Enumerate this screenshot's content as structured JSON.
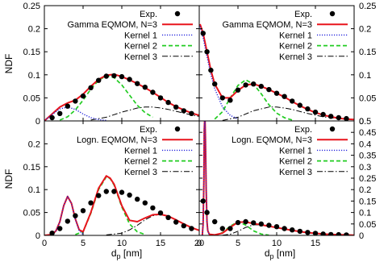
{
  "figure": {
    "ylabel": "NDF",
    "xlabel_main": "d",
    "xlabel_sub": "p",
    "xlabel_unit": " [nm]"
  },
  "chart_data": [
    {
      "type": "line",
      "panel": "top-left",
      "xlim": [
        0,
        20
      ],
      "ylim": [
        0,
        0.25
      ],
      "xticks": [
        0,
        5,
        10,
        15,
        20
      ],
      "yticks": [
        0,
        0.05,
        0.1,
        0.15,
        0.2,
        0.25
      ],
      "ytick_labels": [
        "0",
        "0.05",
        "0.1",
        "0.15",
        "0.2",
        "0.25"
      ],
      "show_xtick_labels": false,
      "ytick_side": "left",
      "legend": {
        "position": "top-right",
        "labels": [
          "Exp.",
          "Gamma EQMOM, N=3",
          "Kernel 1",
          "Kernel 2",
          "Kernel 3"
        ]
      },
      "scatter": {
        "name": "Exp.",
        "x": [
          1,
          2,
          3,
          4,
          5,
          6,
          7,
          8,
          9,
          10,
          11,
          12,
          13,
          14,
          15,
          16,
          17,
          18,
          19
        ],
        "y": [
          0.007,
          0.016,
          0.032,
          0.043,
          0.054,
          0.072,
          0.088,
          0.097,
          0.098,
          0.096,
          0.09,
          0.081,
          0.073,
          0.062,
          0.05,
          0.04,
          0.03,
          0.022,
          0.016
        ]
      },
      "series": [
        {
          "name": "Gamma EQMOM, N=3",
          "kind": "total",
          "x": [
            0,
            1,
            2,
            3,
            4,
            5,
            6,
            7,
            8,
            9,
            10,
            11,
            12,
            13,
            14,
            15,
            16,
            17,
            18,
            19,
            20
          ],
          "y": [
            0,
            0.015,
            0.03,
            0.039,
            0.045,
            0.058,
            0.075,
            0.09,
            0.099,
            0.101,
            0.096,
            0.089,
            0.081,
            0.072,
            0.062,
            0.051,
            0.04,
            0.031,
            0.024,
            0.017,
            0.012
          ]
        },
        {
          "name": "Kernel 1",
          "kind": "k1",
          "x": [
            0,
            1,
            2,
            3,
            4,
            5,
            6,
            7,
            8
          ],
          "y": [
            0,
            0.014,
            0.026,
            0.03,
            0.025,
            0.015,
            0.007,
            0.003,
            0.001
          ]
        },
        {
          "name": "Kernel 2",
          "kind": "k2",
          "x": [
            2,
            3,
            4,
            5,
            6,
            7,
            8,
            9,
            10,
            11,
            12,
            13,
            14
          ],
          "y": [
            0.002,
            0.009,
            0.024,
            0.045,
            0.069,
            0.088,
            0.098,
            0.094,
            0.078,
            0.056,
            0.034,
            0.018,
            0.008
          ]
        },
        {
          "name": "Kernel 3",
          "kind": "k3",
          "x": [
            6,
            8,
            10,
            12,
            13,
            14,
            15,
            16,
            17,
            18,
            19,
            20
          ],
          "y": [
            0.002,
            0.008,
            0.019,
            0.028,
            0.03,
            0.03,
            0.028,
            0.025,
            0.021,
            0.017,
            0.013,
            0.01
          ]
        }
      ]
    },
    {
      "type": "line",
      "panel": "top-right",
      "xlim": [
        0,
        20
      ],
      "ylim": [
        0,
        0.25
      ],
      "xticks": [
        0,
        5,
        10,
        15,
        20
      ],
      "yticks": [
        0,
        0.05,
        0.1,
        0.15,
        0.2,
        0.25
      ],
      "ytick_labels": [
        "0",
        "0.05",
        "0.1",
        "0.15",
        "0.2",
        "0.25"
      ],
      "show_xtick_labels": false,
      "ytick_side": "right",
      "legend": {
        "position": "top-right",
        "labels": [
          "Exp.",
          "Gamma EQMOM, N=3",
          "Kernel 1",
          "Kernel 2",
          "Kernel 3"
        ]
      },
      "scatter": {
        "name": "Exp.",
        "x": [
          0.5,
          1,
          1.5,
          2,
          3,
          4,
          5,
          6,
          7,
          8,
          9,
          10,
          11,
          12,
          13,
          14,
          15,
          16,
          17,
          18,
          19
        ],
        "y": [
          0.19,
          0.15,
          0.11,
          0.08,
          0.05,
          0.045,
          0.067,
          0.078,
          0.08,
          0.075,
          0.068,
          0.06,
          0.053,
          0.043,
          0.034,
          0.026,
          0.019,
          0.014,
          0.01,
          0.007,
          0.005
        ]
      },
      "series": [
        {
          "name": "Gamma EQMOM, N=3",
          "kind": "total",
          "x": [
            0.1,
            0.5,
            1,
            1.5,
            2,
            3,
            4,
            5,
            6,
            7,
            8,
            9,
            10,
            11,
            12,
            13,
            14,
            15,
            16,
            17,
            18,
            19,
            20
          ],
          "y": [
            0.21,
            0.19,
            0.15,
            0.11,
            0.08,
            0.05,
            0.05,
            0.066,
            0.078,
            0.08,
            0.075,
            0.068,
            0.06,
            0.052,
            0.042,
            0.033,
            0.025,
            0.018,
            0.013,
            0.009,
            0.006,
            0.004,
            0.003
          ]
        },
        {
          "name": "Kernel 1",
          "kind": "k1",
          "x": [
            0.1,
            0.5,
            1,
            1.5,
            2,
            3,
            4,
            5
          ],
          "y": [
            0.205,
            0.18,
            0.14,
            0.1,
            0.07,
            0.03,
            0.012,
            0.004
          ]
        },
        {
          "name": "Kernel 2",
          "kind": "k2",
          "x": [
            2,
            3,
            4,
            5,
            6,
            7,
            8,
            9,
            10,
            11,
            12
          ],
          "y": [
            0.004,
            0.02,
            0.05,
            0.077,
            0.089,
            0.08,
            0.059,
            0.035,
            0.017,
            0.007,
            0.002
          ]
        },
        {
          "name": "Kernel 3",
          "kind": "k3",
          "x": [
            3,
            5,
            7,
            9,
            10,
            11,
            12,
            14,
            16,
            18,
            20
          ],
          "y": [
            0.001,
            0.008,
            0.022,
            0.03,
            0.03,
            0.028,
            0.025,
            0.016,
            0.009,
            0.005,
            0.003
          ]
        }
      ]
    },
    {
      "type": "line",
      "panel": "bottom-left",
      "xlim": [
        0,
        20
      ],
      "ylim": [
        0,
        0.25
      ],
      "xticks": [
        0,
        5,
        10,
        15,
        20
      ],
      "yticks": [
        0,
        0.05,
        0.1,
        0.15,
        0.2,
        0.25
      ],
      "xtick_labels": [
        "0",
        "5",
        "10",
        "15",
        "20"
      ],
      "ytick_labels": [
        "0",
        "0.05",
        "0.1",
        "0.15",
        "0.2",
        ""
      ],
      "show_xtick_labels": true,
      "ytick_side": "left",
      "legend": {
        "position": "top-right",
        "labels": [
          "Exp.",
          "Logn. EQMOM, N=3",
          "Kernel 1",
          "Kernel 2",
          "Kernel 3"
        ]
      },
      "scatter": {
        "name": "Exp.",
        "x": [
          1,
          2,
          3,
          4,
          5,
          6,
          7,
          8,
          9,
          10,
          11,
          12,
          13,
          14,
          15,
          16,
          17,
          18,
          19
        ],
        "y": [
          0.005,
          0.015,
          0.031,
          0.043,
          0.054,
          0.071,
          0.087,
          0.096,
          0.096,
          0.094,
          0.088,
          0.079,
          0.071,
          0.06,
          0.049,
          0.039,
          0.029,
          0.021,
          0.015
        ]
      },
      "series": [
        {
          "name": "Logn. EQMOM, N=3",
          "kind": "total",
          "x": [
            0,
            1,
            1.5,
            2,
            2.5,
            3,
            3.5,
            4,
            4.5,
            5,
            6,
            7,
            8,
            8.5,
            9,
            10,
            11,
            12,
            13,
            14,
            15,
            16,
            17,
            18,
            19,
            20
          ],
          "y": [
            0,
            0.002,
            0.01,
            0.03,
            0.065,
            0.085,
            0.07,
            0.036,
            0.012,
            0.008,
            0.05,
            0.103,
            0.13,
            0.125,
            0.112,
            0.065,
            0.033,
            0.03,
            0.038,
            0.045,
            0.046,
            0.042,
            0.034,
            0.025,
            0.017,
            0.011
          ]
        },
        {
          "name": "Kernel 1",
          "kind": "k1",
          "x": [
            1,
            1.5,
            2,
            2.5,
            3,
            3.5,
            4,
            4.5,
            5
          ],
          "y": [
            0.001,
            0.01,
            0.03,
            0.065,
            0.085,
            0.07,
            0.035,
            0.01,
            0.002
          ]
        },
        {
          "name": "Kernel 2",
          "kind": "k2",
          "x": [
            4,
            5,
            6,
            7,
            8,
            8.5,
            9,
            10,
            11,
            12,
            13
          ],
          "y": [
            0.002,
            0.008,
            0.048,
            0.1,
            0.128,
            0.124,
            0.11,
            0.062,
            0.025,
            0.008,
            0.002
          ]
        },
        {
          "name": "Kernel 3",
          "kind": "k3",
          "x": [
            8,
            10,
            11,
            12,
            13,
            14,
            15,
            16,
            17,
            18,
            19,
            20
          ],
          "y": [
            0.001,
            0.005,
            0.012,
            0.022,
            0.034,
            0.043,
            0.046,
            0.042,
            0.034,
            0.025,
            0.017,
            0.011
          ]
        }
      ]
    },
    {
      "type": "line",
      "panel": "bottom-right",
      "xlim": [
        0,
        20
      ],
      "ylim": [
        0,
        0.5
      ],
      "xticks": [
        0,
        5,
        10,
        15,
        20
      ],
      "yticks": [
        0,
        0.05,
        0.1,
        0.15,
        0.2,
        0.25,
        0.3,
        0.35,
        0.4,
        0.45,
        0.5
      ],
      "xtick_labels": [
        "0",
        "5",
        "10",
        "15",
        ""
      ],
      "ytick_labels": [
        "0",
        "0.05",
        "0.1",
        "0.15",
        "0.2",
        "0.25",
        "0.3",
        "0.35",
        "0.4",
        "0.45",
        "0.5"
      ],
      "show_xtick_labels": true,
      "ytick_side": "right",
      "legend": {
        "position": "top-right",
        "labels": [
          "Exp.",
          "Logn. EQMOM, N=3",
          "Kernel 1",
          "Kernel 2",
          "Kernel 3"
        ]
      },
      "scatter": {
        "name": "Exp.",
        "x": [
          0.5,
          1,
          2,
          3,
          4,
          5,
          6,
          7,
          8,
          9,
          10,
          11,
          12,
          13,
          14,
          15,
          16,
          17,
          18,
          19
        ],
        "y": [
          0.15,
          0.1,
          0.06,
          0.03,
          0.03,
          0.056,
          0.06,
          0.055,
          0.05,
          0.044,
          0.038,
          0.03,
          0.024,
          0.018,
          0.013,
          0.009,
          0.006,
          0.004,
          0.003,
          0.002
        ]
      },
      "series": [
        {
          "name": "Logn. EQMOM, N=3",
          "kind": "total",
          "x": [
            0.4,
            0.5,
            0.6,
            0.65,
            0.7,
            0.75,
            0.8,
            0.9,
            1.0,
            1.1,
            1.3,
            2,
            3,
            4,
            5,
            6,
            7,
            8,
            9,
            10,
            11,
            12,
            13,
            14,
            15,
            16,
            17,
            18,
            19,
            20
          ],
          "y": [
            0,
            0.05,
            0.25,
            0.46,
            0.5,
            0.5,
            0.42,
            0.2,
            0.06,
            0.02,
            0.005,
            0.002,
            0.01,
            0.035,
            0.058,
            0.058,
            0.052,
            0.046,
            0.04,
            0.034,
            0.028,
            0.022,
            0.017,
            0.012,
            0.009,
            0.006,
            0.004,
            0.003,
            0.002,
            0.001
          ]
        },
        {
          "name": "Kernel 1",
          "kind": "k1",
          "x": [
            0.4,
            0.5,
            0.6,
            0.65,
            0.7,
            0.75,
            0.8,
            0.9,
            1.0,
            1.1,
            1.3
          ],
          "y": [
            0,
            0.05,
            0.25,
            0.46,
            0.5,
            0.5,
            0.42,
            0.2,
            0.06,
            0.02,
            0.002
          ]
        },
        {
          "name": "Kernel 2",
          "kind": "k2",
          "x": [
            2,
            3,
            4,
            5,
            6,
            7,
            8,
            9
          ],
          "y": [
            0.001,
            0.012,
            0.04,
            0.06,
            0.045,
            0.02,
            0.006,
            0.001
          ]
        },
        {
          "name": "Kernel 3",
          "kind": "k3",
          "x": [
            3,
            4,
            5,
            6,
            7,
            8,
            9,
            10,
            11,
            12,
            13,
            14,
            15,
            16,
            17,
            18,
            19,
            20
          ],
          "y": [
            0.001,
            0.005,
            0.018,
            0.035,
            0.046,
            0.046,
            0.04,
            0.034,
            0.028,
            0.022,
            0.017,
            0.012,
            0.009,
            0.006,
            0.004,
            0.003,
            0.002,
            0.001
          ]
        }
      ]
    }
  ]
}
